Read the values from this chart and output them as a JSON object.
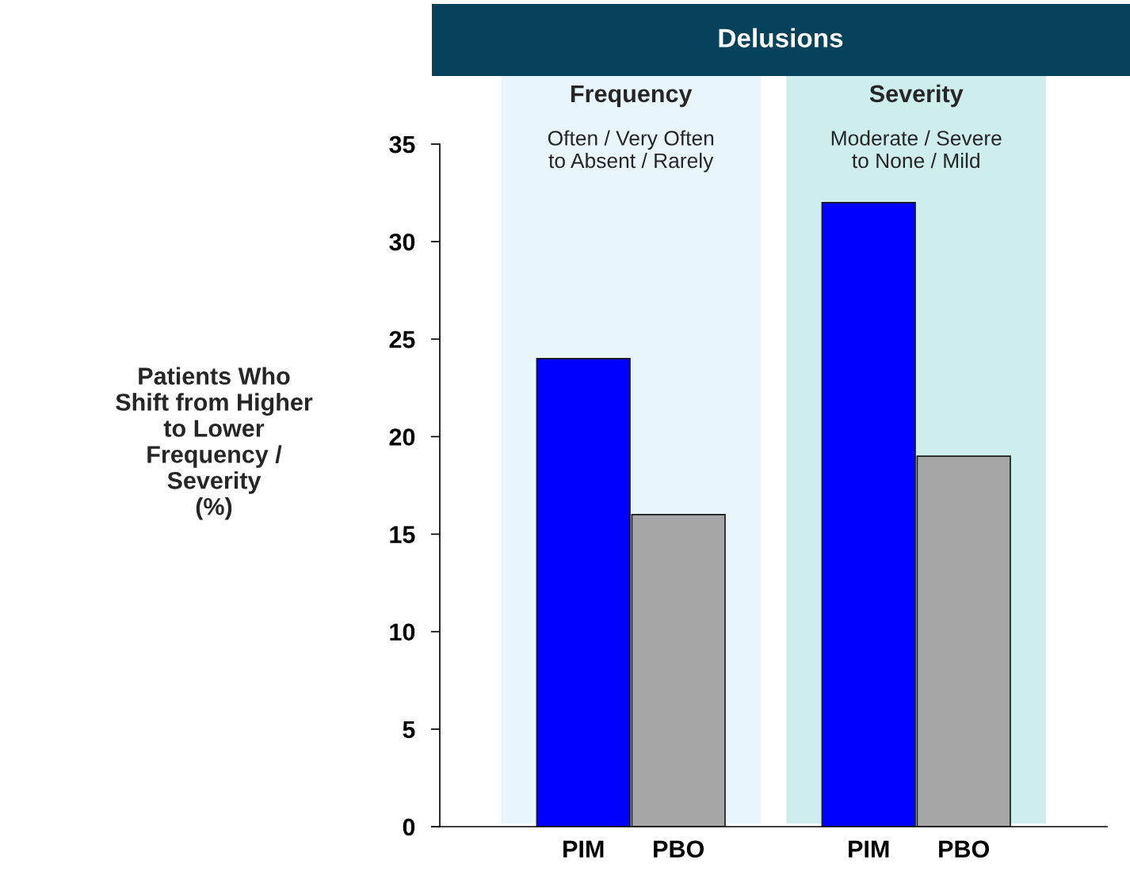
{
  "chart_data": {
    "type": "bar",
    "title": "Delusions",
    "ylabel": "Patients Who\nShift from Higher\nto Lower\nFrequency /\nSeverity\n(%)",
    "categories": [
      "PIM",
      "PBO",
      null,
      "PIM",
      "PBO"
    ],
    "values": [
      24,
      16,
      null,
      32,
      19
    ],
    "colors": [
      "#0000ff",
      "#a6a6a6",
      null,
      "#0000ff",
      "#a6a6a6"
    ],
    "ylim": [
      0,
      35
    ],
    "yticks": [
      0,
      5,
      10,
      15,
      20,
      25,
      30,
      35
    ],
    "annotations": [
      "Frequency\nOften / Very Often\nto Absent / Rarely",
      "Severity\nModerate / Severe\nto None / Mild"
    ],
    "grid": false,
    "legend": false
  }
}
